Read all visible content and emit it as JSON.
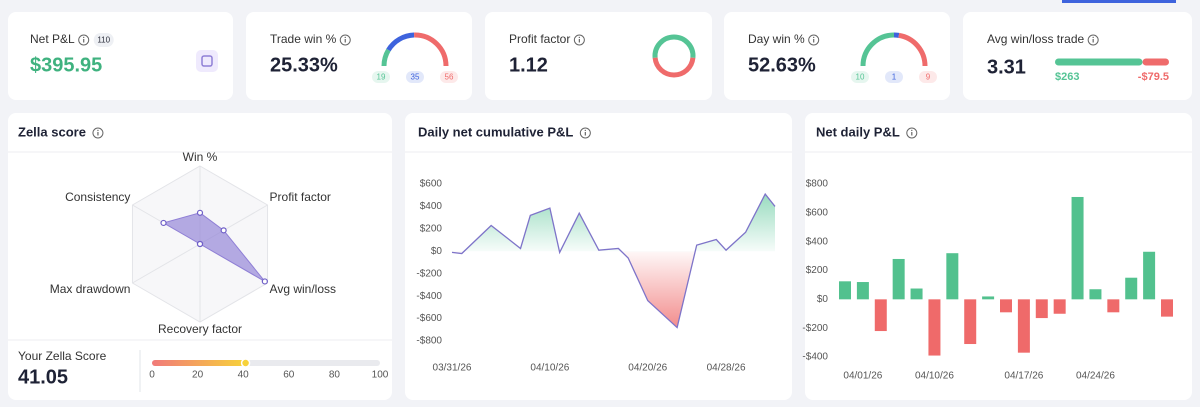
{
  "cards": [
    {
      "label": "Net P&L",
      "badge": "110",
      "value": "$395.95"
    },
    {
      "label": "Trade win %",
      "value": "25.33%"
    },
    {
      "label": "Profit factor",
      "value": "1.12"
    },
    {
      "label": "Day win %",
      "value": "52.63%"
    },
    {
      "label": "Avg win/loss trade",
      "value": "3.31"
    }
  ],
  "chart_data": [
    {
      "type": "gauge",
      "values": [
        19,
        35,
        56
      ],
      "colors": [
        "#55c495",
        "#3e63dd",
        "#ef6b6b"
      ]
    },
    {
      "type": "donut",
      "values": [
        53,
        47
      ],
      "colors": [
        "#55c495",
        "#ef6b6b"
      ]
    },
    {
      "type": "gauge",
      "values": [
        10,
        1,
        9
      ],
      "colors": [
        "#55c495",
        "#3e63dd",
        "#ef6b6b"
      ]
    },
    {
      "type": "split-bar",
      "values": [
        263,
        -79.5
      ],
      "value_labels": [
        "$263",
        "-$79.5"
      ],
      "colors": [
        "#55c495",
        "#ef6b6b"
      ]
    },
    {
      "type": "radar",
      "title": "Zella score",
      "categories": [
        "Win %",
        "Profit factor",
        "Avg win/loss",
        "Recovery factor",
        "Max drawdown",
        "Consistency"
      ],
      "values": [
        40,
        35,
        96,
        0,
        0,
        54
      ],
      "rlim": [
        0,
        100
      ],
      "rticks": [
        25,
        50,
        75,
        100
      ],
      "color": "#8f7fd6"
    },
    {
      "type": "progress",
      "title": "Your Zella Score",
      "value": 41.05,
      "xlim": [
        0,
        100
      ],
      "xticks": [
        0,
        20,
        40,
        60,
        80,
        100
      ]
    },
    {
      "type": "area",
      "title": "Daily net cumulative P&L",
      "x": [
        "03/31/26",
        "04/01/26",
        "04/04/26",
        "04/07/26",
        "04/08/26",
        "04/10/26",
        "04/11/26",
        "04/13/26",
        "04/15/26",
        "04/17/26",
        "04/18/26",
        "04/20/26",
        "04/23/26",
        "04/25/26",
        "04/27/26",
        "04/28/26",
        "04/30/26",
        "05/02/26",
        "05/03/26"
      ],
      "values": [
        -10,
        -20,
        230,
        25,
        320,
        385,
        -10,
        340,
        10,
        25,
        -60,
        -440,
        -680,
        55,
        105,
        10,
        170,
        510,
        400
      ],
      "xlim": [
        "03/31/26",
        "05/03/26"
      ],
      "xticks": [
        "03/31/26",
        "04/10/26",
        "04/20/26",
        "04/28/26"
      ],
      "ylim": [
        -800,
        600
      ],
      "yticks": [
        {
          "value": -800,
          "label": "-$800"
        },
        {
          "value": -600,
          "label": "-$600"
        },
        {
          "value": -400,
          "label": "-$400"
        },
        {
          "value": -200,
          "label": "-$200"
        },
        {
          "value": 0,
          "label": "$0"
        },
        {
          "value": 200,
          "label": "$200"
        },
        {
          "value": 400,
          "label": "$400"
        },
        {
          "value": 600,
          "label": "$600"
        }
      ],
      "color": "#7e74c9",
      "colors": [
        "#55c495",
        "#ef6b6b"
      ]
    },
    {
      "type": "bar",
      "title": "Net daily P&L",
      "categories": [
        null,
        "04/01/26",
        null,
        null,
        null,
        "04/10/26",
        null,
        null,
        null,
        null,
        "04/17/26",
        null,
        null,
        null,
        "04/24/26",
        null,
        null,
        null,
        null
      ],
      "values": [
        125,
        120,
        -220,
        280,
        75,
        -390,
        320,
        -310,
        20,
        -90,
        -370,
        -130,
        -100,
        710,
        70,
        -90,
        150,
        330,
        -120
      ],
      "ylim": [
        -400,
        800
      ],
      "yticks": [
        {
          "value": -400,
          "label": "-$400"
        },
        {
          "value": -200,
          "label": "-$200"
        },
        {
          "value": 0,
          "label": "$0"
        },
        {
          "value": 200,
          "label": "$200"
        },
        {
          "value": 400,
          "label": "$400"
        },
        {
          "value": 600,
          "label": "$600"
        },
        {
          "value": 800,
          "label": "$800"
        }
      ],
      "colors": [
        "#52c18e",
        "#ef6a6a"
      ]
    }
  ]
}
